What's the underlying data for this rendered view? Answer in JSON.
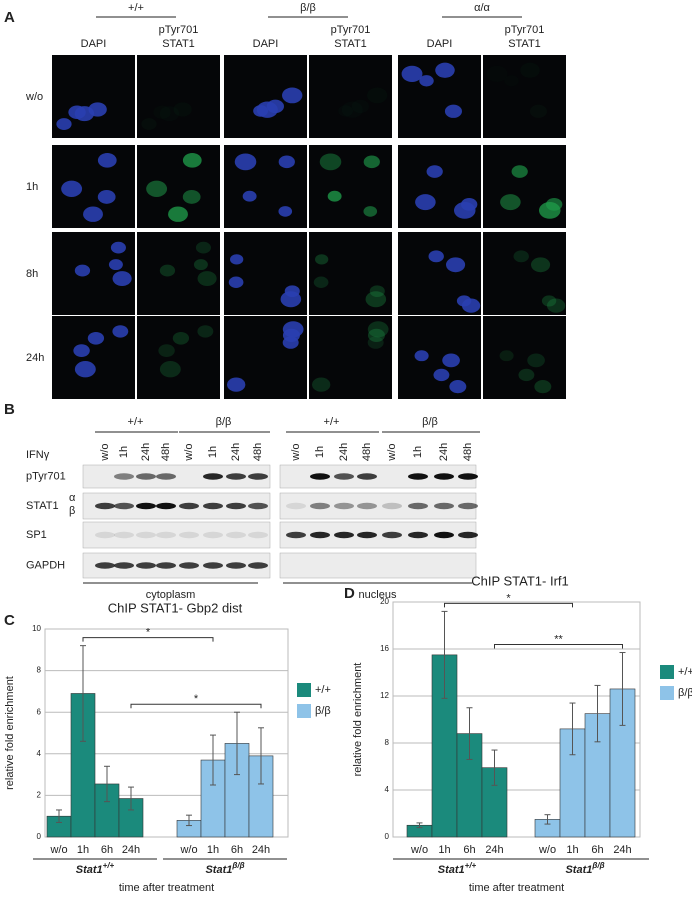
{
  "panel_a": {
    "label": "A",
    "genotypes": [
      "+/+",
      "β/β",
      "α/α"
    ],
    "columns": [
      {
        "lines": [
          "DAPI"
        ]
      },
      {
        "lines": [
          "pTyr701",
          "STAT1"
        ]
      }
    ],
    "rows": [
      "w/o",
      "1h",
      "8h",
      "24h"
    ]
  },
  "panel_b": {
    "label": "B",
    "treatment": "IFNγ",
    "groups": [
      "+/+",
      "β/β",
      "+/+",
      "β/β"
    ],
    "lanes": [
      "w/o",
      "1h",
      "24h",
      "48h"
    ],
    "blots": [
      "pTyr701",
      "STAT1",
      "SP1",
      "GAPDH"
    ],
    "stat1_isoforms": [
      "α",
      "β"
    ],
    "fractions": [
      "cytoplasm",
      "nucleus"
    ]
  },
  "chart_data": [
    {
      "type": "bar",
      "panel": "C",
      "title": "ChIP STAT1- Gbp2 dist",
      "y_label": "relative fold enrichment",
      "x_label": "time after treatment",
      "categories": [
        "w/o",
        "1h",
        "6h",
        "24h"
      ],
      "groups": [
        {
          "name": "Stat1",
          "sup": "+/+"
        },
        {
          "name": "Stat1",
          "sup": "β/β"
        }
      ],
      "series": [
        {
          "name": "+/+",
          "color": "#1b8a7c",
          "values": [
            1.0,
            6.9,
            2.55,
            1.85
          ],
          "errors": [
            0.3,
            2.3,
            0.85,
            0.55
          ]
        },
        {
          "name": "β/β",
          "color": "#8ec3e8",
          "values": [
            0.8,
            3.7,
            4.5,
            3.9
          ],
          "errors": [
            0.25,
            1.2,
            1.5,
            1.35
          ]
        }
      ],
      "brackets": [
        {
          "label": "*",
          "from": 1,
          "to": 1
        },
        {
          "label": "*",
          "from": 3,
          "to": 3
        }
      ],
      "ylim": [
        0,
        10
      ],
      "yticks": [
        0,
        2,
        4,
        6,
        8,
        10
      ],
      "grid": true
    },
    {
      "type": "bar",
      "panel": "D",
      "title": "ChIP STAT1- Irf1",
      "y_label": "relative fold enrichment",
      "x_label": "time after treatment",
      "categories": [
        "w/o",
        "1h",
        "6h",
        "24h"
      ],
      "groups": [
        {
          "name": "Stat1",
          "sup": "+/+"
        },
        {
          "name": "Stat1",
          "sup": "β/β"
        }
      ],
      "series": [
        {
          "name": "+/+",
          "color": "#1b8a7c",
          "values": [
            1.0,
            15.5,
            8.8,
            5.9
          ],
          "errors": [
            0.2,
            3.7,
            2.2,
            1.5
          ]
        },
        {
          "name": "β/β",
          "color": "#8ec3e8",
          "values": [
            1.5,
            9.2,
            10.5,
            12.6
          ],
          "errors": [
            0.4,
            2.2,
            2.4,
            3.1
          ]
        }
      ],
      "brackets": [
        {
          "label": "*",
          "from": 1,
          "to": 1
        },
        {
          "label": "**",
          "from": 3,
          "to": 3
        }
      ],
      "ylim": [
        0,
        20
      ],
      "yticks": [
        0,
        4,
        8,
        12,
        16,
        20
      ],
      "grid": true
    }
  ]
}
